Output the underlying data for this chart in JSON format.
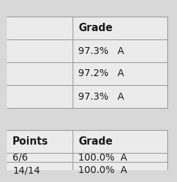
{
  "background_color": "#d8d8d8",
  "table_bg": "#ebebeb",
  "line_color": "#999999",
  "top_table_header": [
    "",
    "Grade"
  ],
  "top_table_rows": [
    [
      "",
      "97.3%   A"
    ],
    [
      "",
      "97.2%   A"
    ],
    [
      "",
      "97.3%   A"
    ]
  ],
  "bottom_table_header": [
    "Points",
    "Grade"
  ],
  "bottom_table_rows": [
    [
      "6/6",
      "100.0%  A"
    ],
    [
      "14/14",
      "100.0%  A"
    ]
  ],
  "font_size_header": 10.5,
  "font_size_body": 10.0
}
